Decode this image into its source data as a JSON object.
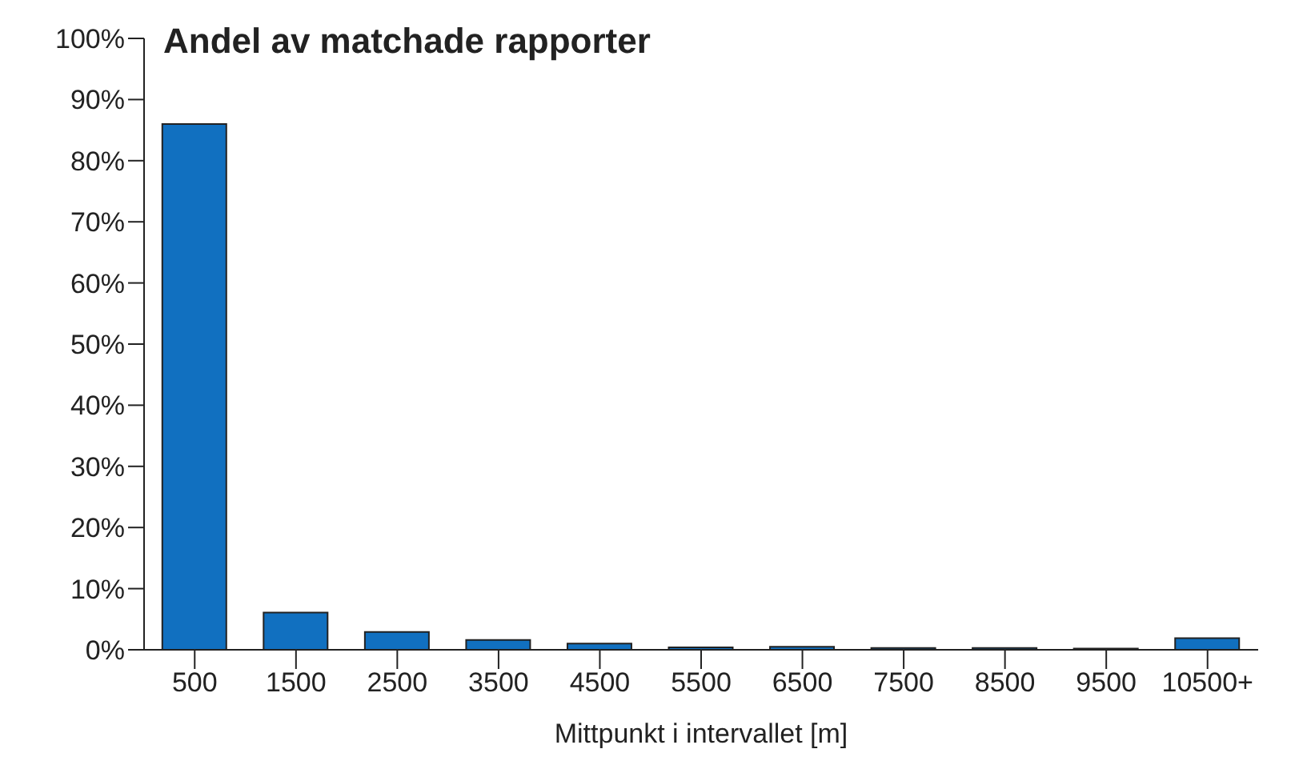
{
  "chart_data": {
    "type": "bar",
    "title": "Andel av matchade rapporter",
    "xlabel": "Mittpunkt i intervallet [m]",
    "categories": [
      "500",
      "1500",
      "2500",
      "3500",
      "4500",
      "5500",
      "6500",
      "7500",
      "8500",
      "9500",
      "10500+"
    ],
    "values": [
      86,
      6.1,
      2.9,
      1.6,
      1.0,
      0.4,
      0.5,
      0.3,
      0.3,
      0.2,
      1.9
    ],
    "color": "#1170c0",
    "ylim": [
      0,
      100
    ],
    "yticks": [
      {
        "value": 0,
        "label": "0%"
      },
      {
        "value": 10,
        "label": "10%"
      },
      {
        "value": 20,
        "label": "20%"
      },
      {
        "value": 30,
        "label": "30%"
      },
      {
        "value": 40,
        "label": "40%"
      },
      {
        "value": 50,
        "label": "50%"
      },
      {
        "value": 60,
        "label": "60%"
      },
      {
        "value": 70,
        "label": "70%"
      },
      {
        "value": 80,
        "label": "80%"
      },
      {
        "value": 90,
        "label": "90%"
      },
      {
        "value": 100,
        "label": "100%"
      }
    ],
    "grid": false,
    "legend": false
  }
}
